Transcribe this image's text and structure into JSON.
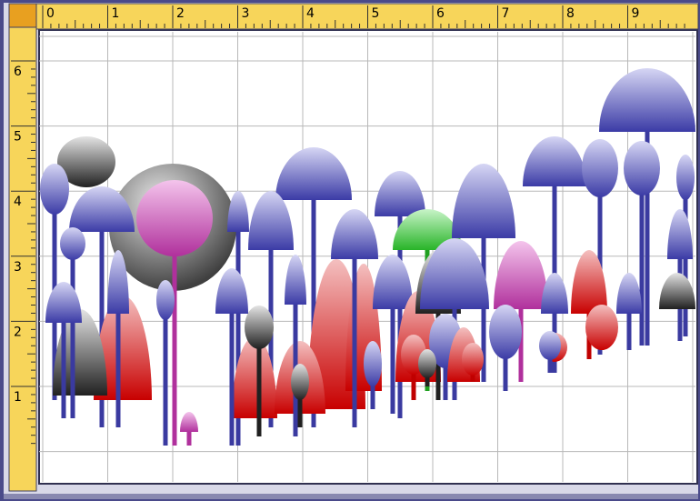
{
  "ruler": {
    "top": [
      "0",
      "1",
      "2",
      "3",
      "4",
      "5",
      "6",
      "7",
      "8",
      "9"
    ],
    "left": [
      "6",
      "5",
      "4",
      "3",
      "2",
      "1"
    ]
  }
}
